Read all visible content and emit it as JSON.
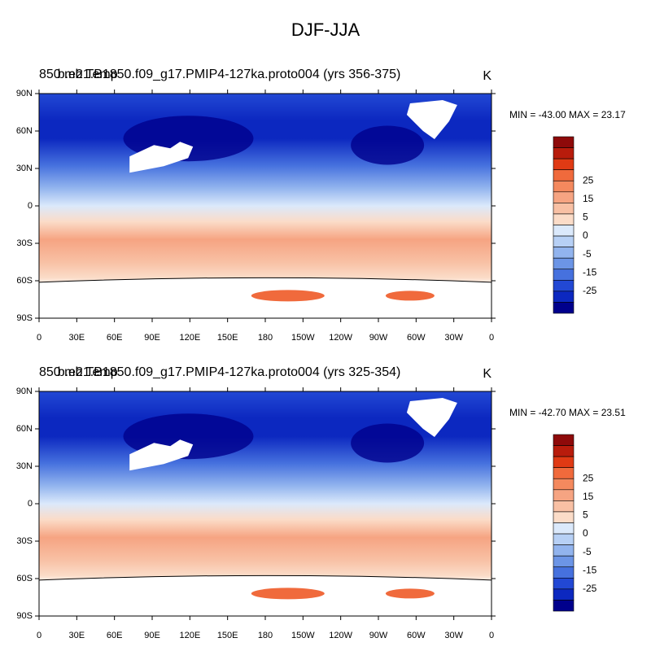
{
  "title": "DJF-JJA",
  "panels": [
    {
      "left_title": "850 mb Temp",
      "center_title": "b.e21.B1850.f09_g17.PMIP4-127ka.proto004 (yrs 356-375)",
      "units": "K",
      "stats": "MIN = -43.00 MAX =  23.17"
    },
    {
      "left_title": "850 mb Temp",
      "center_title": "b.e21.B1850.f09_g17.PMIP4-127ka.proto004 (yrs 325-354)",
      "units": "K",
      "stats": "MIN = -42.70 MAX =  23.51"
    }
  ],
  "lat_labels": [
    "90N",
    "60N",
    "30N",
    "0",
    "30S",
    "60S",
    "90S"
  ],
  "lon_labels": [
    "0",
    "30E",
    "60E",
    "90E",
    "120E",
    "150E",
    "180",
    "150W",
    "120W",
    "90W",
    "60W",
    "30W",
    "0"
  ],
  "colorbar": {
    "colors": [
      "#8e0a0a",
      "#b81c0c",
      "#e03a14",
      "#f06a3c",
      "#f4895e",
      "#f6a482",
      "#f8c0a4",
      "#fbdcc8",
      "#dbe9fb",
      "#b7d0f5",
      "#92b4ee",
      "#6c95e6",
      "#4671de",
      "#2248d4",
      "#0c28c0",
      "#00008c"
    ],
    "labels": [
      "25",
      "15",
      "5",
      "0",
      "-5",
      "-15",
      "-25"
    ]
  }
}
